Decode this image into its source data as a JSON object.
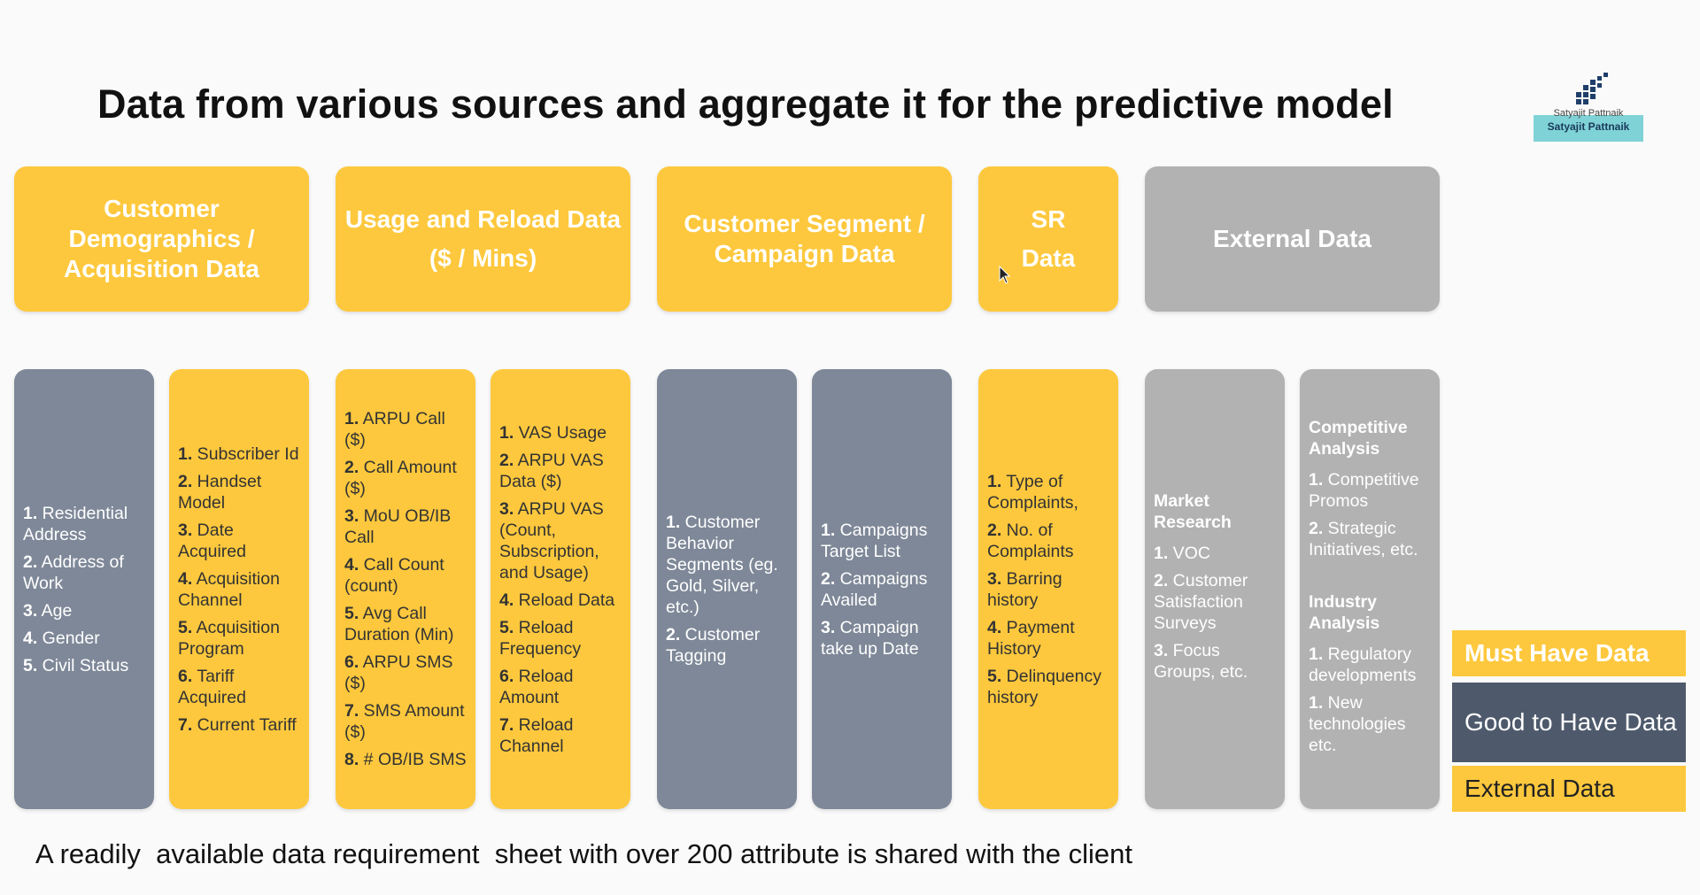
{
  "title": "Data from various sources and aggregate it for the predictive model",
  "logo": {
    "line1": "Satyajit Pattnaik",
    "line2": "Satyajit Pattnaik"
  },
  "headers": {
    "customer": "Customer Demographics / Acquisition Data",
    "usage": "Usage and Reload Data ($ / Mins)",
    "segment": "Customer Segment / Campaign Data",
    "sr": "SR Data",
    "external": "External Data"
  },
  "columns": {
    "c1": [
      {
        "n": "1.",
        "t": "Residential Address"
      },
      {
        "n": "2.",
        "t": "Address of Work"
      },
      {
        "n": "3.",
        "t": "Age"
      },
      {
        "n": "4.",
        "t": "Gender"
      },
      {
        "n": "5.",
        "t": "Civil Status"
      }
    ],
    "c2": [
      {
        "n": "1.",
        "t": "Subscriber Id"
      },
      {
        "n": "2.",
        "t": "Handset Model"
      },
      {
        "n": "3.",
        "t": "Date Acquired"
      },
      {
        "n": "4.",
        "t": "Acquisition Channel"
      },
      {
        "n": "5.",
        "t": "Acquisition Program"
      },
      {
        "n": "6.",
        "t": "Tariff Acquired"
      },
      {
        "n": "7.",
        "t": "Current Tariff"
      }
    ],
    "c3": [
      {
        "n": "1.",
        "t": "ARPU Call ($)"
      },
      {
        "n": "2.",
        "t": "Call Amount ($)"
      },
      {
        "n": "3.",
        "t": "MoU OB/IB Call"
      },
      {
        "n": "4.",
        "t": "Call Count (count)"
      },
      {
        "n": "5.",
        "t": "Avg Call Duration (Min)"
      },
      {
        "n": "6.",
        "t": "ARPU SMS ($)"
      },
      {
        "n": "7.",
        "t": "SMS Amount ($)"
      },
      {
        "n": "8.",
        "t": "# OB/IB SMS"
      }
    ],
    "c4": [
      {
        "n": "1.",
        "t": "VAS Usage"
      },
      {
        "n": "2.",
        "t": "ARPU VAS Data ($)"
      },
      {
        "n": "3.",
        "t": "ARPU VAS (Count, Subscription, and Usage)"
      },
      {
        "n": "4.",
        "t": "Reload Data"
      },
      {
        "n": "5.",
        "t": "Reload Frequency"
      },
      {
        "n": "6.",
        "t": "Reload Amount"
      },
      {
        "n": "7.",
        "t": "Reload Channel"
      }
    ],
    "c5": [
      {
        "n": "1.",
        "t": "Customer Behavior Segments (eg. Gold, Silver, etc.)"
      },
      {
        "n": "2.",
        "t": "Customer Tagging"
      }
    ],
    "c6": [
      {
        "n": "1.",
        "t": "Campaigns Target List"
      },
      {
        "n": "2.",
        "t": "Campaigns Availed"
      },
      {
        "n": "3.",
        "t": "Campaign take up  Date"
      }
    ],
    "c7": [
      {
        "n": "1.",
        "t": "Type of Complaints,"
      },
      {
        "n": "2.",
        "t": "No. of Complaints"
      },
      {
        "n": "3.",
        "t": "Barring history"
      },
      {
        "n": "4.",
        "t": "Payment History"
      },
      {
        "n": "5.",
        "t": "Delinquency history"
      }
    ],
    "c8": {
      "heading": "Market Research",
      "items": [
        {
          "n": "1.",
          "t": "VOC"
        },
        {
          "n": "2.",
          "t": "Customer Satisfaction Surveys"
        },
        {
          "n": "3.",
          "t": "Focus Groups, etc."
        }
      ]
    },
    "c9": {
      "heading1": "Competitive Analysis",
      "items1": [
        {
          "n": "1.",
          "t": "Competitive Promos"
        },
        {
          "n": "2.",
          "t": "Strategic Initiatives, etc."
        }
      ],
      "heading2": "Industry Analysis",
      "items2": [
        {
          "n": "1.",
          "t": "Regulatory developments"
        },
        {
          "n": "1.",
          "t": "New technologies etc."
        }
      ]
    }
  },
  "legend": {
    "must": "Must Have Data",
    "good": "Good to Have Data",
    "external": "External Data"
  },
  "footer": "A readily  available data requirement  sheet with over 200 attribute is shared with the client",
  "colors": {
    "must": "#fdc83d",
    "good": "#7e8898",
    "external": "#b2b2b2"
  }
}
